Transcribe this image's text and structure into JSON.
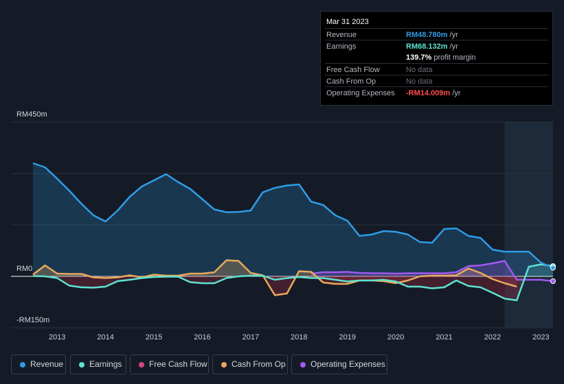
{
  "tooltip": {
    "date": "Mar 31 2023",
    "rows": [
      {
        "label": "Revenue",
        "value": "RM48.780m",
        "unit": " /yr",
        "color": "#2e9de8"
      },
      {
        "label": "Earnings",
        "value": "RM68.132m",
        "unit": " /yr",
        "color": "#5ee3d2"
      },
      {
        "label": "",
        "value": "139.7%",
        "unit": " profit margin",
        "color": "#ffffff"
      },
      {
        "label": "Free Cash Flow",
        "value": "No data",
        "unit": "",
        "color": "#6b7078"
      },
      {
        "label": "Cash From Op",
        "value": "No data",
        "unit": "",
        "color": "#6b7078"
      },
      {
        "label": "Operating Expenses",
        "value": "-RM14.009m",
        "unit": " /yr",
        "color": "#ff4d4d"
      }
    ]
  },
  "legend": [
    {
      "label": "Revenue",
      "color": "#2e9de8"
    },
    {
      "label": "Earnings",
      "color": "#5ee3d2"
    },
    {
      "label": "Free Cash Flow",
      "color": "#d6457e"
    },
    {
      "label": "Cash From Op",
      "color": "#eaaa5d"
    },
    {
      "label": "Operating Expenses",
      "color": "#a259f0"
    }
  ],
  "chart_data": {
    "type": "area",
    "title": "",
    "xlabel": "",
    "ylabel": "",
    "y_tick_labels": [
      "RM450m",
      "RM0",
      "-RM150m"
    ],
    "ylim": [
      -150,
      450
    ],
    "xlim": [
      2012.5,
      2023.25
    ],
    "x_ticks": [
      2013,
      2014,
      2015,
      2016,
      2017,
      2018,
      2019,
      2020,
      2021,
      2022,
      2023
    ],
    "x_tick_labels": [
      "2013",
      "2014",
      "2015",
      "2016",
      "2017",
      "2018",
      "2019",
      "2020",
      "2021",
      "2022",
      "2023"
    ],
    "forecast_start": 2022.25,
    "series": [
      {
        "name": "Revenue",
        "color": "#2e9de8",
        "fill": true,
        "x": [
          2012.5,
          2012.75,
          2013.0,
          2013.25,
          2013.5,
          2013.75,
          2014.0,
          2014.25,
          2014.5,
          2014.75,
          2015.0,
          2015.25,
          2015.5,
          2015.75,
          2016.0,
          2016.25,
          2016.5,
          2016.75,
          2017.0,
          2017.25,
          2017.5,
          2017.75,
          2018.0,
          2018.25,
          2018.5,
          2018.75,
          2019.0,
          2019.25,
          2019.5,
          2019.75,
          2020.0,
          2020.25,
          2020.5,
          2020.75,
          2021.0,
          2021.25,
          2021.5,
          2021.75,
          2022.0,
          2022.25,
          2022.5,
          2022.75,
          2023.0,
          2023.25
        ],
        "values": [
          330,
          318,
          285,
          250,
          212,
          178,
          160,
          192,
          232,
          262,
          280,
          298,
          275,
          255,
          225,
          195,
          187,
          188,
          192,
          245,
          258,
          265,
          268,
          218,
          208,
          178,
          162,
          118,
          122,
          132,
          130,
          122,
          100,
          98,
          138,
          140,
          118,
          112,
          78,
          72,
          72,
          72,
          40,
          25
        ]
      },
      {
        "name": "Earnings",
        "color": "#5ee3d2",
        "fill": true,
        "x": [
          2012.5,
          2012.75,
          2013.0,
          2013.25,
          2013.5,
          2013.75,
          2014.0,
          2014.25,
          2014.5,
          2014.75,
          2015.0,
          2015.25,
          2015.5,
          2015.75,
          2016.0,
          2016.25,
          2016.5,
          2016.75,
          2017.0,
          2017.25,
          2017.5,
          2017.75,
          2018.0,
          2018.25,
          2018.5,
          2018.75,
          2019.0,
          2019.25,
          2019.5,
          2019.75,
          2020.0,
          2020.25,
          2020.5,
          2020.75,
          2021.0,
          2021.25,
          2021.5,
          2021.75,
          2022.0,
          2022.25,
          2022.5,
          2022.75,
          2023.0,
          2023.25
        ],
        "values": [
          1,
          0,
          -5,
          -27,
          -32,
          -33,
          -30,
          -14,
          -10,
          -5,
          -2,
          -1,
          -1,
          -17,
          -20,
          -20,
          -5,
          0,
          2,
          2,
          -10,
          -5,
          -2,
          -5,
          -5,
          -10,
          -15,
          -12,
          -12,
          -10,
          -15,
          -30,
          -30,
          -35,
          -32,
          -12,
          -28,
          -32,
          -48,
          -65,
          -70,
          28,
          35,
          30
        ]
      },
      {
        "name": "Cash From Op",
        "color": "#eaaa5d",
        "fill": true,
        "x": [
          2012.5,
          2012.75,
          2013.0,
          2013.25,
          2013.5,
          2013.75,
          2014.0,
          2014.25,
          2014.5,
          2014.75,
          2015.0,
          2015.25,
          2015.5,
          2015.75,
          2016.0,
          2016.25,
          2016.5,
          2016.75,
          2017.0,
          2017.25,
          2017.5,
          2017.75,
          2018.0,
          2018.25,
          2018.5,
          2018.75,
          2019.0,
          2019.25,
          2019.5,
          2019.75,
          2020.0,
          2020.25,
          2020.5,
          2020.75,
          2021.0,
          2021.25,
          2021.5,
          2021.75,
          2022.0,
          2022.25,
          2022.5
        ],
        "values": [
          5,
          32,
          8,
          7,
          7,
          -3,
          -5,
          -3,
          3,
          -3,
          5,
          2,
          2,
          8,
          8,
          12,
          47,
          45,
          10,
          3,
          -55,
          -50,
          15,
          13,
          -18,
          -22,
          -22,
          -12,
          -12,
          -14,
          -20,
          -12,
          0,
          2,
          2,
          3,
          23,
          10,
          -8,
          -20,
          -30
        ]
      },
      {
        "name": "Operating Expenses",
        "color": "#a259f0",
        "fill": true,
        "x": [
          2018.25,
          2018.5,
          2018.75,
          2019.0,
          2019.25,
          2019.5,
          2019.75,
          2020.0,
          2020.25,
          2020.5,
          2020.75,
          2021.0,
          2021.25,
          2021.5,
          2021.75,
          2022.0,
          2022.25,
          2022.5,
          2022.75,
          2023.0,
          2023.25
        ],
        "values": [
          8,
          12,
          12,
          13,
          10,
          9,
          9,
          8,
          9,
          9,
          9,
          9,
          12,
          30,
          32,
          38,
          45,
          -10,
          -10,
          -10,
          -14
        ]
      }
    ]
  }
}
